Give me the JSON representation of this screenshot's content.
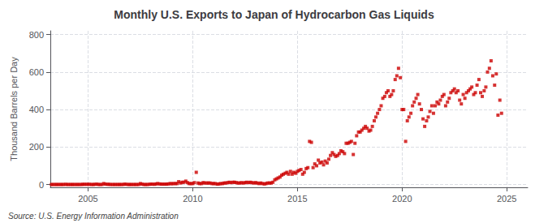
{
  "chart_data": {
    "type": "scatter",
    "title": "Monthly U.S. Exports to Japan of Hydrocarbon Gas Liquids",
    "ylabel": "Thousand Barrels per Day",
    "annotations": [
      "Source: U.S. Energy Information Administration"
    ],
    "color": "#cc0000",
    "marker": "square",
    "grid": true,
    "xlim": [
      2003.2,
      2026.0
    ],
    "xticks": [
      2005,
      2010,
      2015,
      2020,
      2025
    ],
    "ylim": [
      -15,
      820
    ],
    "yticks": [
      0,
      200,
      400,
      600,
      800
    ],
    "x": [
      2003.25,
      2003.33,
      2003.42,
      2003.5,
      2003.58,
      2003.67,
      2003.75,
      2003.83,
      2003.92,
      2004.0,
      2004.08,
      2004.17,
      2004.25,
      2004.33,
      2004.42,
      2004.5,
      2004.58,
      2004.67,
      2004.75,
      2004.83,
      2004.92,
      2005.0,
      2005.08,
      2005.17,
      2005.25,
      2005.33,
      2005.42,
      2005.5,
      2005.58,
      2005.67,
      2005.75,
      2005.83,
      2005.92,
      2006.0,
      2006.08,
      2006.17,
      2006.25,
      2006.33,
      2006.42,
      2006.5,
      2006.58,
      2006.67,
      2006.75,
      2006.83,
      2006.92,
      2007.0,
      2007.08,
      2007.17,
      2007.25,
      2007.33,
      2007.42,
      2007.5,
      2007.58,
      2007.67,
      2007.75,
      2007.83,
      2007.92,
      2008.0,
      2008.08,
      2008.17,
      2008.25,
      2008.33,
      2008.42,
      2008.5,
      2008.58,
      2008.67,
      2008.75,
      2008.83,
      2008.92,
      2009.0,
      2009.08,
      2009.17,
      2009.25,
      2009.33,
      2009.42,
      2009.5,
      2009.58,
      2009.67,
      2009.75,
      2009.83,
      2009.92,
      2010.0,
      2010.08,
      2010.17,
      2010.25,
      2010.33,
      2010.42,
      2010.5,
      2010.58,
      2010.67,
      2010.75,
      2010.83,
      2010.92,
      2011.0,
      2011.08,
      2011.17,
      2011.25,
      2011.33,
      2011.42,
      2011.5,
      2011.58,
      2011.67,
      2011.75,
      2011.83,
      2011.92,
      2012.0,
      2012.08,
      2012.17,
      2012.25,
      2012.33,
      2012.42,
      2012.5,
      2012.58,
      2012.67,
      2012.75,
      2012.83,
      2012.92,
      2013.0,
      2013.08,
      2013.17,
      2013.25,
      2013.33,
      2013.42,
      2013.5,
      2013.58,
      2013.67,
      2013.75,
      2013.83,
      2013.92,
      2014.0,
      2014.08,
      2014.17,
      2014.25,
      2014.33,
      2014.42,
      2014.5,
      2014.58,
      2014.67,
      2014.75,
      2014.83,
      2014.92,
      2015.0,
      2015.08,
      2015.17,
      2015.25,
      2015.33,
      2015.42,
      2015.5,
      2015.58,
      2015.67,
      2015.75,
      2015.83,
      2015.92,
      2016.0,
      2016.08,
      2016.17,
      2016.25,
      2016.33,
      2016.42,
      2016.5,
      2016.58,
      2016.67,
      2016.75,
      2016.83,
      2016.92,
      2017.0,
      2017.08,
      2017.17,
      2017.25,
      2017.33,
      2017.42,
      2017.5,
      2017.58,
      2017.67,
      2017.75,
      2017.83,
      2017.92,
      2018.0,
      2018.08,
      2018.17,
      2018.25,
      2018.33,
      2018.42,
      2018.5,
      2018.58,
      2018.67,
      2018.75,
      2018.83,
      2018.92,
      2019.0,
      2019.08,
      2019.17,
      2019.25,
      2019.33,
      2019.42,
      2019.5,
      2019.58,
      2019.67,
      2019.75,
      2019.83,
      2019.92,
      2020.0,
      2020.08,
      2020.17,
      2020.25,
      2020.33,
      2020.42,
      2020.5,
      2020.58,
      2020.67,
      2020.75,
      2020.83,
      2020.92,
      2021.0,
      2021.08,
      2021.17,
      2021.25,
      2021.33,
      2021.42,
      2021.5,
      2021.58,
      2021.67,
      2021.75,
      2021.83,
      2021.92,
      2022.0,
      2022.08,
      2022.17,
      2022.25,
      2022.33,
      2022.42,
      2022.5,
      2022.58,
      2022.67,
      2022.75,
      2022.83,
      2022.92,
      2023.0,
      2023.08,
      2023.17,
      2023.25,
      2023.33,
      2023.42,
      2023.5,
      2023.58,
      2023.67,
      2023.75,
      2023.83,
      2023.92,
      2024.0,
      2024.08,
      2024.17,
      2024.25,
      2024.33,
      2024.42,
      2024.5,
      2024.58,
      2024.67,
      2024.75
    ],
    "values": [
      0,
      0,
      0,
      0,
      0,
      0,
      0,
      0,
      1,
      0,
      0,
      0,
      0,
      0,
      0,
      0,
      0,
      0,
      1,
      1,
      1,
      1,
      1,
      0,
      0,
      1,
      2,
      0,
      0,
      0,
      5,
      2,
      1,
      1,
      0,
      0,
      0,
      0,
      0,
      0,
      0,
      0,
      2,
      1,
      0,
      0,
      0,
      0,
      0,
      0,
      0,
      5,
      2,
      0,
      0,
      0,
      1,
      2,
      2,
      1,
      3,
      5,
      3,
      2,
      2,
      2,
      2,
      3,
      5,
      4,
      5,
      5,
      5,
      15,
      8,
      12,
      12,
      18,
      10,
      5,
      5,
      5,
      10,
      65,
      8,
      5,
      5,
      10,
      8,
      8,
      8,
      8,
      5,
      5,
      5,
      2,
      3,
      5,
      5,
      8,
      8,
      10,
      12,
      10,
      12,
      12,
      10,
      8,
      8,
      10,
      8,
      10,
      12,
      10,
      12,
      10,
      8,
      10,
      8,
      5,
      8,
      5,
      3,
      5,
      8,
      8,
      8,
      12,
      25,
      30,
      35,
      40,
      50,
      55,
      60,
      65,
      55,
      70,
      55,
      65,
      60,
      70,
      75,
      80,
      55,
      65,
      85,
      90,
      230,
      225,
      90,
      110,
      100,
      130,
      115,
      120,
      105,
      125,
      115,
      135,
      155,
      170,
      160,
      150,
      155,
      165,
      180,
      175,
      165,
      220,
      220,
      225,
      230,
      160,
      220,
      260,
      280,
      280,
      290,
      300,
      310,
      300,
      285,
      290,
      310,
      340,
      360,
      380,
      400,
      420,
      460,
      470,
      490,
      500,
      470,
      480,
      500,
      560,
      580,
      620,
      570,
      400,
      400,
      230,
      340,
      360,
      380,
      420,
      440,
      460,
      480,
      430,
      400,
      350,
      310,
      340,
      360,
      390,
      420,
      380,
      420,
      440,
      430,
      450,
      470,
      480,
      420,
      440,
      460,
      490,
      500,
      510,
      490,
      500,
      450,
      430,
      480,
      460,
      490,
      500,
      510,
      520,
      480,
      490,
      530,
      560,
      490,
      470,
      500,
      520,
      600,
      620,
      660,
      580,
      530,
      590,
      370,
      450,
      380
    ]
  }
}
